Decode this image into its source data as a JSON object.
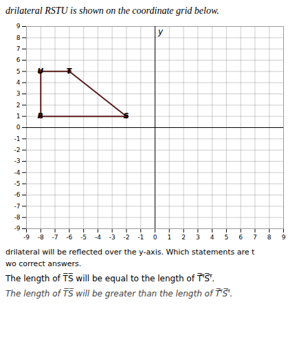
{
  "chart_data": {
    "type": "polygon",
    "title": "drilateral RSTU is shown on the coordinate grid below.",
    "annotations": [
      "drilateral will be reflected over the y-axis. Which statements are t",
      "wo correct answers.",
      "The length of T̅S̅ will be equal to the length of T̅'̅S̅'̅.",
      "The length of T̅S̅ will be greater than the length of T̅'̅S̅'̅."
    ],
    "ylabel": "y",
    "points": [
      {
        "name": "R",
        "x": -8,
        "y": 1
      },
      {
        "name": "U",
        "x": -8,
        "y": 5
      },
      {
        "name": "T",
        "x": -6,
        "y": 5
      },
      {
        "name": "S",
        "x": -2,
        "y": 1
      }
    ],
    "color": "#5a1a1a",
    "marker": "circle",
    "xlim": [
      -9,
      9
    ],
    "ylim": [
      -9,
      9
    ],
    "xticks": [
      -9,
      -8,
      -7,
      -6,
      -5,
      -4,
      -3,
      -2,
      -1,
      0,
      1,
      2,
      3,
      4,
      5,
      6,
      7,
      8,
      9
    ],
    "yticks": [
      -9,
      -8,
      -7,
      -6,
      -5,
      -4,
      -3,
      -2,
      -1,
      0,
      1,
      2,
      3,
      4,
      5,
      6,
      7,
      8,
      9
    ],
    "grid": true
  }
}
